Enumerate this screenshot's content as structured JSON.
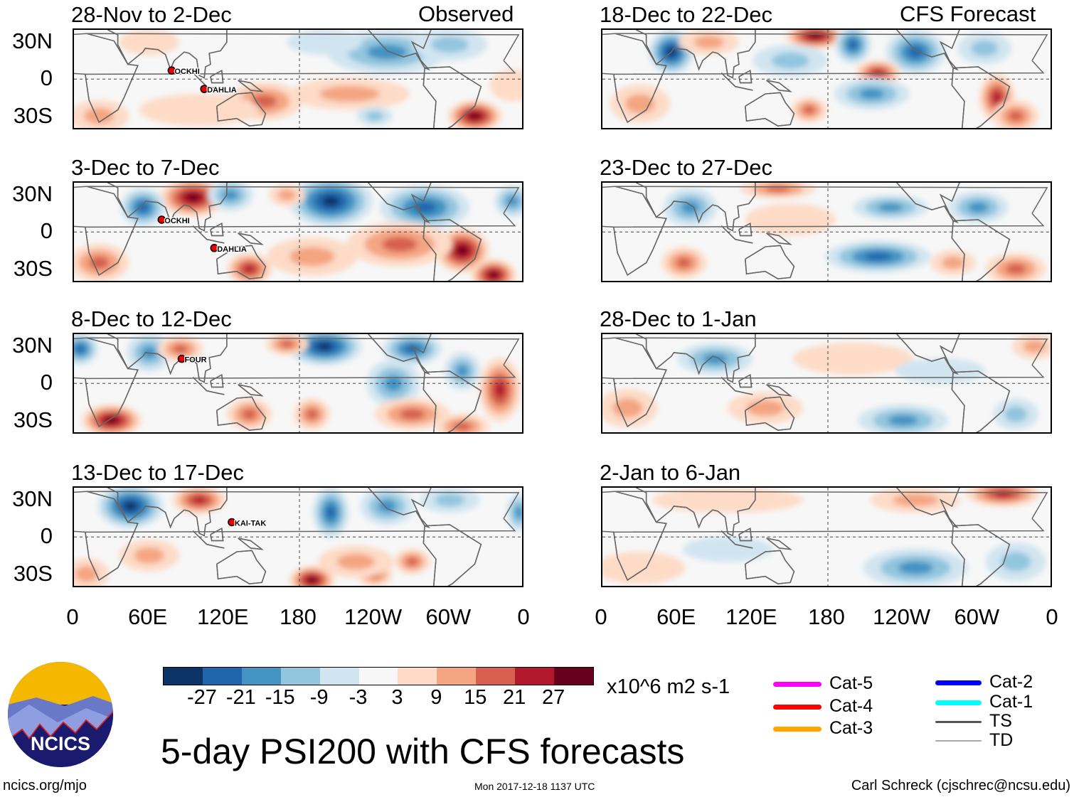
{
  "header": {
    "left_label": "Observed",
    "right_label": "CFS Forecast"
  },
  "panels": [
    {
      "title": "28-Nov to 2-Dec",
      "storms": [
        {
          "name": "OCKHI",
          "lon": 78,
          "lat": 7
        },
        {
          "name": "DAHLIA",
          "lon": 104,
          "lat": -8
        }
      ]
    },
    {
      "title": "3-Dec to 7-Dec",
      "storms": [
        {
          "name": "OCKHI",
          "lon": 70,
          "lat": 10
        },
        {
          "name": "DAHLIA",
          "lon": 112,
          "lat": -13
        }
      ]
    },
    {
      "title": "8-Dec to 12-Dec",
      "storms": [
        {
          "name": "FOUR",
          "lon": 86,
          "lat": 20
        }
      ]
    },
    {
      "title": "13-Dec to 17-Dec",
      "storms": [
        {
          "name": "KAI-TAK",
          "lon": 126,
          "lat": 12
        }
      ]
    },
    {
      "title": "18-Dec to 22-Dec",
      "storms": []
    },
    {
      "title": "23-Dec to 27-Dec",
      "storms": []
    },
    {
      "title": "28-Dec to 1-Jan",
      "storms": []
    },
    {
      "title": "2-Jan to 6-Jan",
      "storms": []
    }
  ],
  "y_axis": [
    "30N",
    "0",
    "30S"
  ],
  "x_axis": [
    "0",
    "60E",
    "120E",
    "180",
    "120W",
    "60W",
    "0"
  ],
  "colorbar": {
    "colors": [
      "#0b3366",
      "#2166ac",
      "#4393c3",
      "#92c5de",
      "#d1e5f0",
      "#f7f7f7",
      "#fddbc7",
      "#f4a582",
      "#d6604d",
      "#b2182b",
      "#67001f"
    ],
    "labels": [
      "-27",
      "-21",
      "-15",
      "-9",
      "-3",
      "3",
      "9",
      "15",
      "21",
      "27"
    ],
    "units": "x10^6 m2 s-1"
  },
  "storm_legend": [
    {
      "label": "Cat-5",
      "color": "#ff00ff"
    },
    {
      "label": "Cat-4",
      "color": "#ff0000"
    },
    {
      "label": "Cat-3",
      "color": "#ffa500"
    },
    {
      "label": "Cat-2",
      "color": "#0000ff"
    },
    {
      "label": "Cat-1",
      "color": "#00ffff"
    },
    {
      "label": "TS",
      "color": "#555555"
    },
    {
      "label": "TD",
      "color": "#aaaaaa"
    }
  ],
  "logo": {
    "text": "NCICS"
  },
  "footer": {
    "title": "5-day PSI200 with CFS forecasts",
    "url": "ncics.org/mjo",
    "timestamp": "Mon 2017-12-18 1137 UTC",
    "credit": "Carl Schreck (cjschrec@ncsu.edu)"
  }
}
